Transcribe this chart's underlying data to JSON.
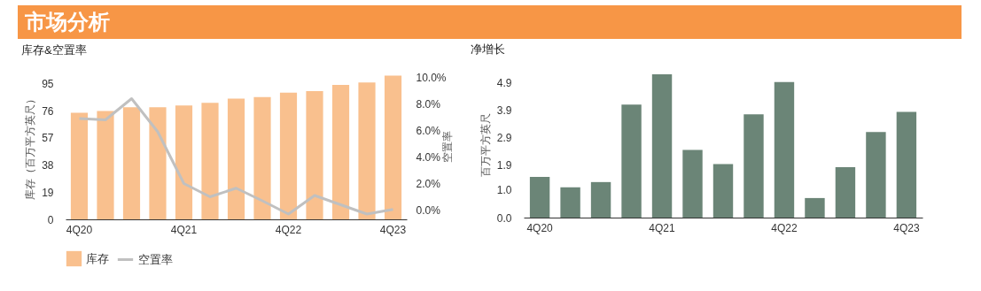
{
  "chart_data": [
    {
      "type": "other",
      "title": "市场分析",
      "color": "#f79646"
    },
    {
      "type": "bar",
      "title": "库存&空置率",
      "ylabel": "库存（百万平方英尺）",
      "y2label": "空置率",
      "categories": [
        "4Q20",
        null,
        null,
        null,
        "4Q21",
        null,
        null,
        null,
        "4Q22",
        null,
        null,
        null,
        "4Q23"
      ],
      "ylim": [
        0,
        102
      ],
      "yticks": [
        0,
        19,
        38,
        57,
        76,
        95
      ],
      "y2lim": [
        -0.7,
        10.3
      ],
      "y2ticks": [
        {
          "value": 0,
          "label": "0.0%"
        },
        {
          "value": 2,
          "label": "2.0%"
        },
        {
          "value": 4,
          "label": "4.0%"
        },
        {
          "value": 6,
          "label": "6.0%"
        },
        {
          "value": 8,
          "label": "8.0%"
        },
        {
          "value": 10,
          "label": "10.0%"
        }
      ],
      "legend": "bottom",
      "series": [
        {
          "name": "库存",
          "type": "bar",
          "color": "#f9c08e",
          "values": [
            74.5,
            75.8,
            78.4,
            78.4,
            79.6,
            81.4,
            84.4,
            85.5,
            88.5,
            89.7,
            93.9,
            95.6,
            100.4
          ]
        },
        {
          "name": "空置率",
          "type": "line",
          "axis": "y2",
          "color": "#c0c0c0",
          "values": [
            6.9,
            6.8,
            8.4,
            5.9,
            2.0,
            1.0,
            1.65,
            0.7,
            -0.3,
            1.1,
            0.4,
            -0.3,
            0.05
          ]
        }
      ]
    },
    {
      "type": "bar",
      "title": "净增长",
      "ylabel": "百万平方英尺",
      "categories": [
        "4Q20",
        null,
        null,
        null,
        "4Q21",
        null,
        null,
        null,
        "4Q22",
        null,
        null,
        null,
        "4Q23"
      ],
      "ylim": [
        0,
        5.3
      ],
      "yticks": [
        {
          "value": 0,
          "label": "0.0"
        },
        {
          "value": 1,
          "label": "1.0"
        },
        1.9,
        2.9,
        3.9,
        4.9
      ],
      "series": [
        {
          "type": "bar",
          "color": "#6b8577",
          "values": [
            1.48,
            1.1,
            1.29,
            4.1,
            5.2,
            2.46,
            1.94,
            3.75,
            4.92,
            0.71,
            1.83,
            3.11,
            3.84
          ]
        }
      ]
    }
  ]
}
